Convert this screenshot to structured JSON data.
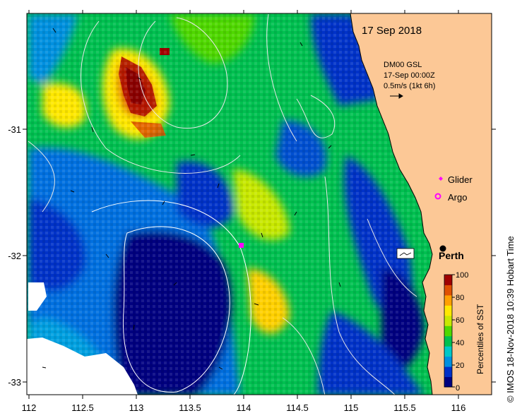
{
  "map": {
    "date_title": "17 Sep 2018",
    "current_info": {
      "source": "DM00 GSL",
      "time": "17-Sep 00:00Z",
      "scale": "0.5m/s (1kt 6h)"
    },
    "legend": {
      "glider_label": "Glider",
      "argo_label": "Argo"
    },
    "city_label": "Perth",
    "colorbar": {
      "title": "Percentiles of SST",
      "ticks": [
        "0",
        "20",
        "40",
        "60",
        "80",
        "100"
      ],
      "colors": [
        "#000080",
        "#0030c8",
        "#0090e0",
        "#00c8c8",
        "#00c050",
        "#50d800",
        "#c8e800",
        "#ffe800",
        "#ffa000",
        "#e05000",
        "#a00000"
      ]
    },
    "x_ticks": [
      "112",
      "112.5",
      "113",
      "113.5",
      "114",
      "114.5",
      "115",
      "115.5",
      "116"
    ],
    "y_ticks": [
      "-31",
      "-32",
      "-33"
    ],
    "credit": "© IMOS 18-Nov-2018 10:39 Hobart Time",
    "colors": {
      "land": "#fcc896",
      "contour": "#e8e8e8"
    }
  }
}
